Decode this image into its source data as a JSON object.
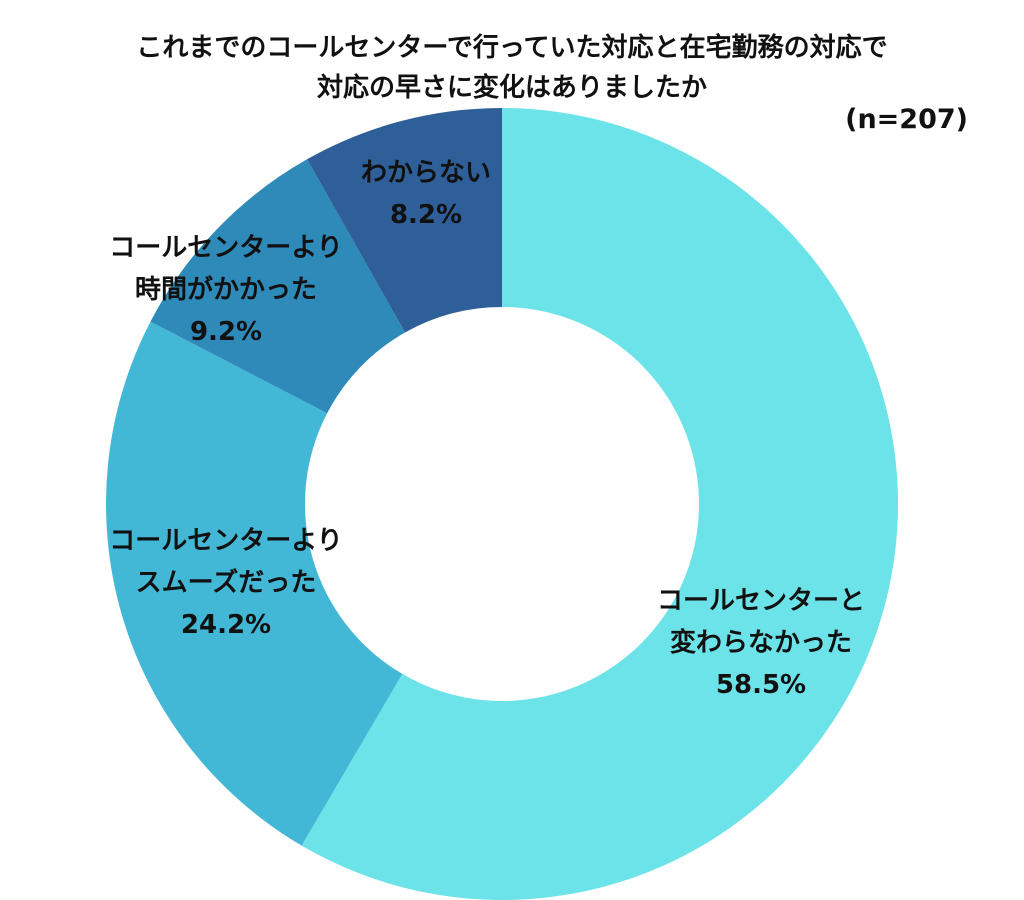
{
  "chart_data": {
    "type": "pie",
    "variant": "donut",
    "title_line1": "これまでのコールセンターで行っていた対応と在宅勤務の対応で",
    "title_line2": "対応の早さに変化はありましたか",
    "note": "(n=207)",
    "legend": "none",
    "slices": [
      {
        "line1": "コールセンターと",
        "line2": "変わらなかった",
        "pct_label": "58.5%",
        "value": 58.5,
        "color": "#6ce3e8"
      },
      {
        "line1": "コールセンターより",
        "line2": "スムーズだった",
        "pct_label": "24.2%",
        "value": 24.2,
        "color": "#43b8d6"
      },
      {
        "line1": "コールセンターより",
        "line2": "時間がかかった",
        "pct_label": "9.2%",
        "value": 9.2,
        "color": "#2e8ab8"
      },
      {
        "line1": "",
        "line2": "わからない",
        "pct_label": "8.2%",
        "value": 8.2,
        "color": "#2f5f98"
      }
    ]
  }
}
